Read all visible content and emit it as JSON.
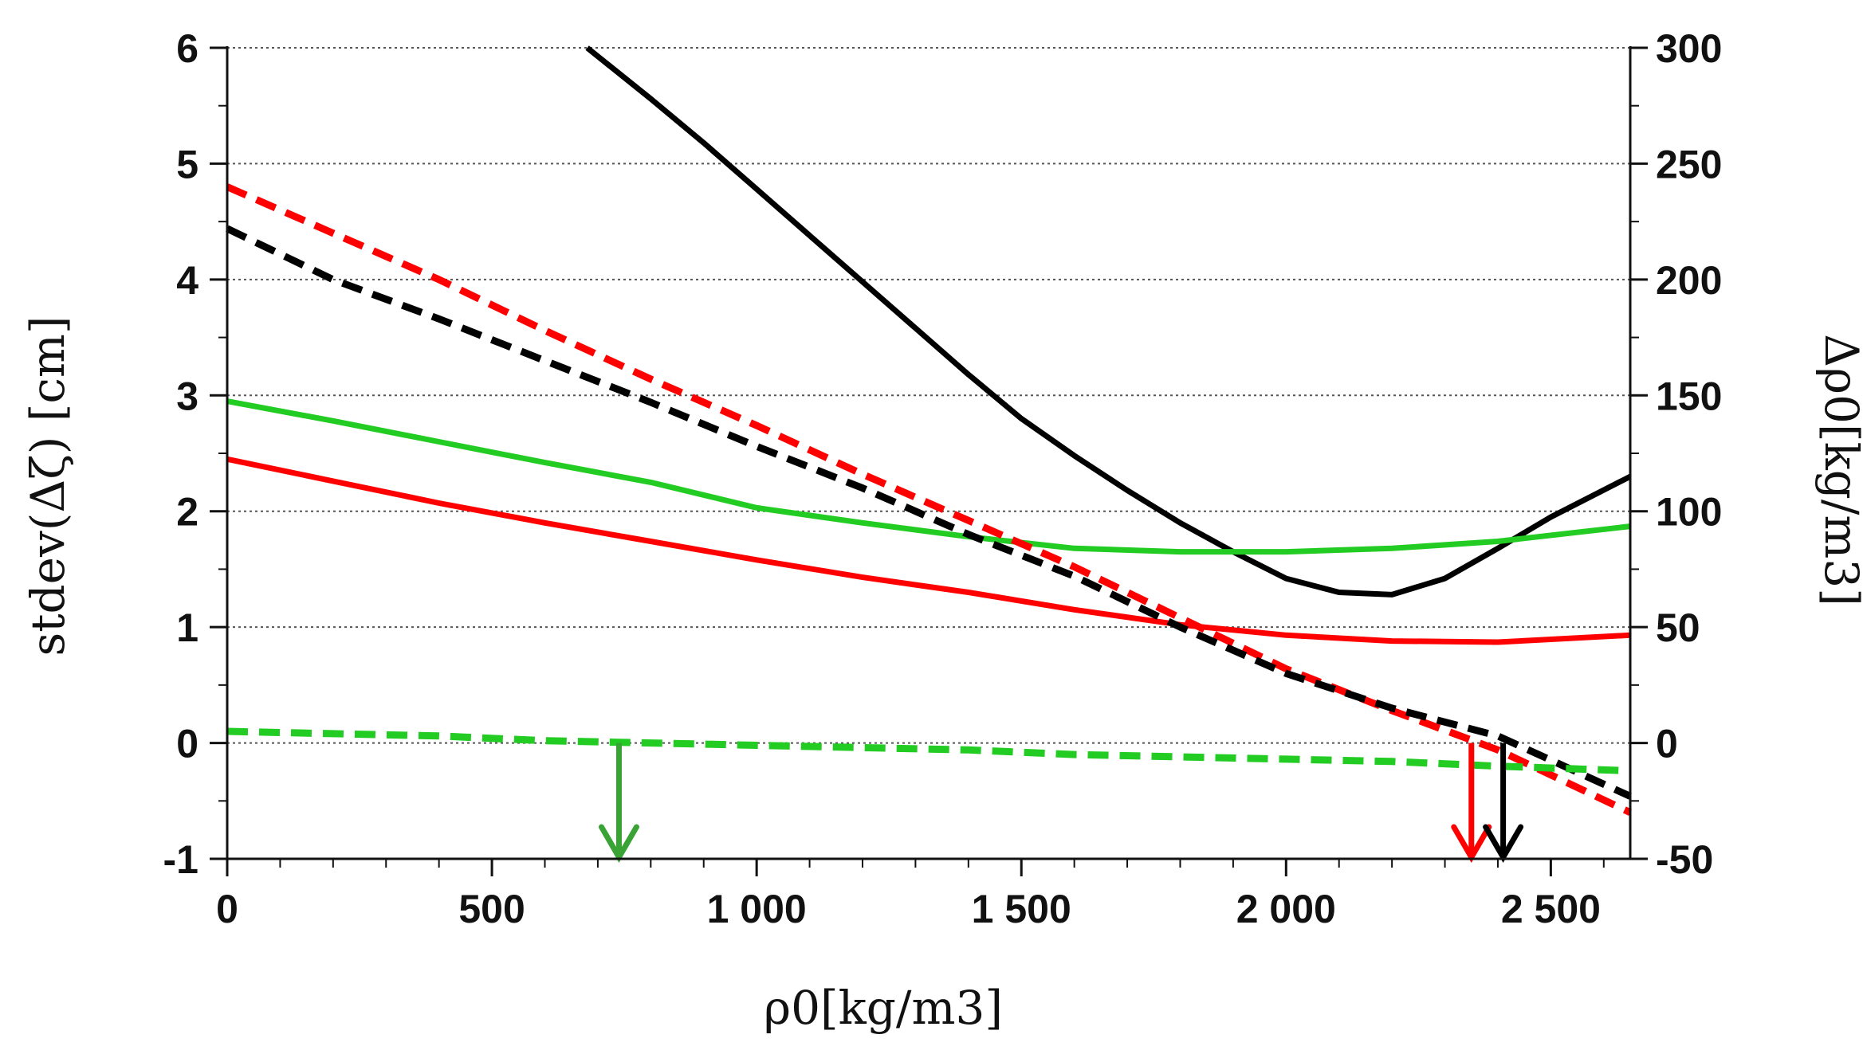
{
  "chart_data": {
    "type": "line",
    "x": [
      0,
      100,
      200,
      300,
      400,
      500,
      600,
      700,
      800,
      900,
      1000,
      1100,
      1200,
      1300,
      1400,
      1500,
      1600,
      1700,
      1800,
      1900,
      2000,
      2100,
      2200,
      2300,
      2400,
      2500,
      2650
    ],
    "xlabel": "ρ0[kg/m3]",
    "ylabel_left": "stdev(Δζ) [cm]",
    "ylabel_right": "Δρ0[kg/m3]",
    "xlim": [
      0,
      2650
    ],
    "ylim_left": [
      -1,
      6
    ],
    "ylim_right": [
      -50,
      300
    ],
    "x_ticks": [
      0,
      500,
      1000,
      1500,
      2000,
      2500
    ],
    "x_tick_labels": [
      "0",
      "500",
      "1 000",
      "1 500",
      "2 000",
      "2 500"
    ],
    "y_left_ticks": [
      -1,
      0,
      1,
      2,
      3,
      4,
      5,
      6
    ],
    "y_left_tick_labels": [
      "-1",
      "0",
      "1",
      "2",
      "3",
      "4",
      "5",
      "6"
    ],
    "y_right_ticks": [
      -50,
      0,
      50,
      100,
      150,
      200,
      250,
      300
    ],
    "y_right_tick_labels": [
      "-50",
      "0",
      "50",
      "100",
      "150",
      "200",
      "250",
      "300"
    ],
    "grid": true,
    "series": [
      {
        "name": "black-solid",
        "axis": "left",
        "color": "#000000",
        "dash": "solid",
        "x": [
          680,
          800,
          900,
          1000,
          1100,
          1200,
          1300,
          1400,
          1500,
          1600,
          1700,
          1800,
          1900,
          2000,
          2100,
          2200,
          2300,
          2400,
          2500,
          2650
        ],
        "values": [
          6.0,
          5.56,
          5.18,
          4.78,
          4.38,
          3.98,
          3.58,
          3.18,
          2.8,
          2.48,
          2.18,
          1.9,
          1.65,
          1.42,
          1.3,
          1.28,
          1.42,
          1.68,
          1.95,
          2.3
        ]
      },
      {
        "name": "green-solid",
        "axis": "left",
        "color": "#22cc22",
        "dash": "solid",
        "x": [
          0,
          200,
          400,
          600,
          800,
          1000,
          1200,
          1400,
          1600,
          1800,
          2000,
          2200,
          2400,
          2650
        ],
        "values": [
          2.95,
          2.78,
          2.6,
          2.42,
          2.25,
          2.03,
          1.9,
          1.78,
          1.68,
          1.65,
          1.65,
          1.68,
          1.74,
          1.87
        ]
      },
      {
        "name": "red-solid",
        "axis": "left",
        "color": "#ff0000",
        "dash": "solid",
        "x": [
          0,
          200,
          400,
          600,
          800,
          1000,
          1200,
          1400,
          1600,
          1800,
          2000,
          2200,
          2400,
          2650
        ],
        "values": [
          2.45,
          2.26,
          2.07,
          1.9,
          1.74,
          1.58,
          1.43,
          1.3,
          1.15,
          1.02,
          0.93,
          0.88,
          0.87,
          0.93
        ]
      },
      {
        "name": "red-dashed",
        "axis": "right",
        "color": "#ff0000",
        "dash": "dashed",
        "x": [
          0,
          200,
          400,
          600,
          800,
          1000,
          1200,
          1400,
          1600,
          1800,
          2000,
          2200,
          2400,
          2650
        ],
        "values": [
          240,
          220,
          200,
          178,
          157,
          137,
          116,
          96,
          76,
          54,
          32,
          14,
          -3,
          -30
        ]
      },
      {
        "name": "black-dashed",
        "axis": "right",
        "color": "#000000",
        "dash": "dashed",
        "x": [
          0,
          200,
          400,
          600,
          800,
          1000,
          1200,
          1400,
          1600,
          1800,
          2000,
          2200,
          2400,
          2650
        ],
        "values": [
          222,
          200,
          183,
          165,
          147,
          128,
          110,
          90,
          72,
          50,
          30,
          15,
          3,
          -23
        ]
      },
      {
        "name": "green-dashed",
        "axis": "right",
        "color": "#22cc22",
        "dash": "dashed",
        "x": [
          0,
          200,
          400,
          600,
          800,
          1000,
          1200,
          1400,
          1600,
          1800,
          2000,
          2200,
          2400,
          2650
        ],
        "values": [
          5,
          4,
          3,
          1,
          0,
          -1,
          -2,
          -3,
          -5,
          -6,
          -7,
          -8,
          -10,
          -12
        ]
      }
    ],
    "annotations": [
      {
        "type": "arrow",
        "color": "#3aa335",
        "x": 740,
        "from": 0,
        "to": -1,
        "axis": "left"
      },
      {
        "type": "arrow",
        "color": "#ff0000",
        "x": 2350,
        "from": 0,
        "to": -1,
        "axis": "left"
      },
      {
        "type": "arrow",
        "color": "#000000",
        "x": 2410,
        "from": 0,
        "to": -1,
        "axis": "left"
      }
    ]
  }
}
